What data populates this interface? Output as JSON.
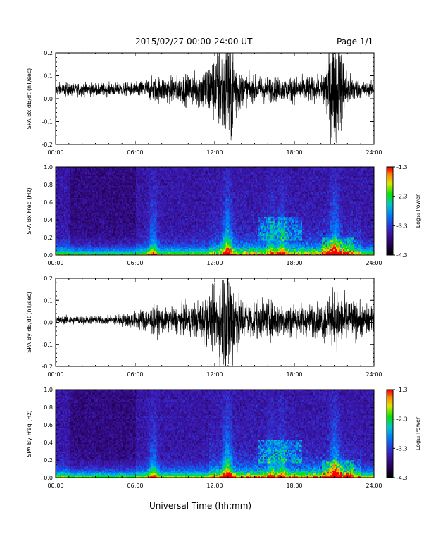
{
  "header": {
    "title": "2015/02/27  00:00-24:00 UT",
    "page": "Page 1/1"
  },
  "footer": {
    "xaxis_title": "Universal Time (hh:mm)"
  },
  "chart_data": [
    {
      "type": "line",
      "id": "bx",
      "ylabel": "SPA Bx dB/dt (nT/sec)",
      "ylim": [
        -0.2,
        0.2
      ],
      "yticks": [
        -0.2,
        -0.1,
        0.0,
        0.1,
        0.2
      ],
      "ytick_labels": [
        "-0.2",
        "-0.1",
        "0.0",
        "0.1",
        "0.2"
      ],
      "xlim": [
        0,
        24
      ],
      "xticks": [
        0,
        6,
        12,
        18,
        24
      ],
      "xtick_labels": [
        "00:00",
        "06:00",
        "12:00",
        "18:00",
        "24:00"
      ],
      "series": [
        {
          "x": [
            0,
            1,
            2,
            3,
            4,
            5,
            6,
            7,
            8,
            9,
            10,
            11,
            12,
            13,
            14,
            15,
            16,
            17,
            18,
            19,
            20,
            21,
            22,
            23,
            24
          ],
          "baseline": [
            0.04,
            0.04,
            0.04,
            0.04,
            0.04,
            0.04,
            0.04,
            0.04,
            0.04,
            0.04,
            0.04,
            0.04,
            0.04,
            0.04,
            0.04,
            0.04,
            0.04,
            0.04,
            0.04,
            0.04,
            0.04,
            0.04,
            0.04,
            0.04,
            0.04
          ],
          "amplitude": [
            0.03,
            0.03,
            0.03,
            0.03,
            0.03,
            0.03,
            0.03,
            0.05,
            0.06,
            0.06,
            0.07,
            0.09,
            0.15,
            0.3,
            0.07,
            0.06,
            0.06,
            0.05,
            0.06,
            0.06,
            0.05,
            0.3,
            0.08,
            0.04,
            0.03
          ]
        }
      ]
    },
    {
      "type": "heatmap",
      "id": "bx-spec",
      "ylabel": "SPA Bx Freq (Hz)",
      "ylim": [
        0.0,
        1.0
      ],
      "yticks": [
        0.0,
        0.2,
        0.4,
        0.6,
        0.8,
        1.0
      ],
      "ytick_labels": [
        "0.0",
        "0.2",
        "0.4",
        "0.6",
        "0.8",
        "1.0"
      ],
      "xlim": [
        0,
        24
      ],
      "xticks": [
        0,
        6,
        12,
        18,
        24
      ],
      "xtick_labels": [
        "00:00",
        "06:00",
        "12:00",
        "18:00",
        "24:00"
      ],
      "colorbar": {
        "label": "Log₁₀ Power",
        "range": [
          -4.3,
          -1.3
        ],
        "ticks": [
          -4.3,
          -3.3,
          -2.3,
          -1.3
        ],
        "tick_labels": [
          "-4.3",
          "-3.3",
          "-2.3",
          "-1.3"
        ]
      },
      "events": [
        {
          "t": 7.3,
          "strength": 0.6
        },
        {
          "t": 12.9,
          "strength": 0.9
        },
        {
          "t": 16.2,
          "strength": 0.4
        },
        {
          "t": 17.0,
          "strength": 0.5
        },
        {
          "t": 21.0,
          "strength": 0.8
        }
      ]
    },
    {
      "type": "line",
      "id": "by",
      "ylabel": "SPA By dB/dt (nT/sec)",
      "ylim": [
        -0.2,
        0.2
      ],
      "yticks": [
        -0.2,
        -0.1,
        0.0,
        0.1,
        0.2
      ],
      "ytick_labels": [
        "-0.2",
        "-0.1",
        "0.0",
        "0.1",
        "0.2"
      ],
      "xlim": [
        0,
        24
      ],
      "xticks": [
        0,
        6,
        12,
        18,
        24
      ],
      "xtick_labels": [
        "00:00",
        "06:00",
        "12:00",
        "18:00",
        "24:00"
      ],
      "series": [
        {
          "x": [
            0,
            1,
            2,
            3,
            4,
            5,
            6,
            7,
            8,
            9,
            10,
            11,
            12,
            13,
            14,
            15,
            16,
            17,
            18,
            19,
            20,
            21,
            22,
            23,
            24
          ],
          "baseline": [
            0.01,
            0.01,
            0.01,
            0.01,
            0.01,
            0.01,
            0.01,
            0.01,
            0.01,
            0.01,
            0.01,
            0.01,
            0.01,
            0.01,
            0.01,
            0.01,
            0.01,
            0.01,
            0.01,
            0.01,
            0.01,
            0.01,
            0.01,
            0.01,
            0.01
          ],
          "amplitude": [
            0.02,
            0.02,
            0.02,
            0.02,
            0.02,
            0.03,
            0.04,
            0.07,
            0.06,
            0.06,
            0.07,
            0.1,
            0.14,
            0.3,
            0.1,
            0.09,
            0.09,
            0.08,
            0.08,
            0.07,
            0.08,
            0.14,
            0.1,
            0.08,
            0.06
          ]
        }
      ]
    },
    {
      "type": "heatmap",
      "id": "by-spec",
      "ylabel": "SPA By Freq (Hz)",
      "ylim": [
        0.0,
        1.0
      ],
      "yticks": [
        0.0,
        0.2,
        0.4,
        0.6,
        0.8,
        1.0
      ],
      "ytick_labels": [
        "0.0",
        "0.2",
        "0.4",
        "0.6",
        "0.8",
        "1.0"
      ],
      "xlim": [
        0,
        24
      ],
      "xticks": [
        0,
        6,
        12,
        18,
        24
      ],
      "xtick_labels": [
        "00:00",
        "06:00",
        "12:00",
        "18:00",
        "24:00"
      ],
      "colorbar": {
        "label": "Log₁₀ Power",
        "range": [
          -4.3,
          -1.3
        ],
        "ticks": [
          -4.3,
          -3.3,
          -2.3,
          -1.3
        ],
        "tick_labels": [
          "-4.3",
          "-3.3",
          "-2.3",
          "-1.3"
        ]
      },
      "events": [
        {
          "t": 7.3,
          "strength": 0.6
        },
        {
          "t": 12.9,
          "strength": 0.9
        },
        {
          "t": 16.2,
          "strength": 0.4
        },
        {
          "t": 17.0,
          "strength": 0.5
        },
        {
          "t": 21.0,
          "strength": 0.8
        }
      ]
    }
  ]
}
